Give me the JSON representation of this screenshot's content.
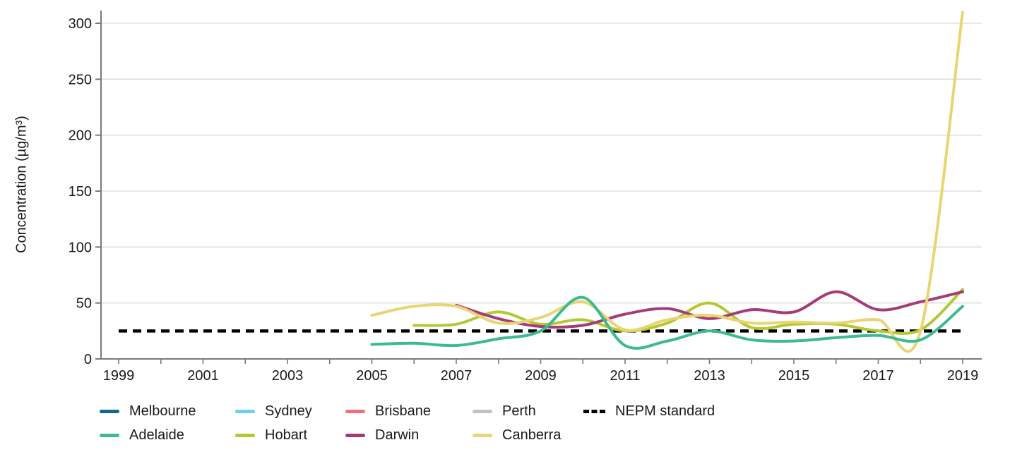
{
  "chart_data": {
    "type": "line",
    "ylabel": "Concentration (µg/m³)",
    "xlabel": "",
    "ylim": [
      0,
      300
    ],
    "y_ticks": [
      0,
      50,
      100,
      150,
      200,
      250,
      300
    ],
    "x_range": [
      1999,
      2019
    ],
    "x_tick_labels": [
      1999,
      2001,
      2003,
      2005,
      2007,
      2009,
      2011,
      2013,
      2015,
      2017,
      2019
    ],
    "x_minor_tick_step_years": 1,
    "grid": "horizontal",
    "legend_position": "bottom",
    "series": [
      {
        "name": "Melbourne",
        "color": "#12688c",
        "style": "solid",
        "x": [],
        "values": []
      },
      {
        "name": "Sydney",
        "color": "#6ed0f0",
        "style": "solid",
        "x": [],
        "values": []
      },
      {
        "name": "Brisbane",
        "color": "#f1707f",
        "style": "solid",
        "x": [],
        "values": []
      },
      {
        "name": "Perth",
        "color": "#c2c2c2",
        "style": "solid",
        "x": [],
        "values": []
      },
      {
        "name": "Adelaide",
        "color": "#3cba92",
        "style": "solid",
        "x": [
          2005,
          2006,
          2007,
          2008,
          2009,
          2010,
          2011,
          2012,
          2013,
          2014,
          2015,
          2016,
          2017,
          2018,
          2019
        ],
        "values": [
          13,
          14,
          12,
          18,
          25,
          55,
          12,
          16,
          25,
          17,
          16,
          19,
          21,
          17,
          47
        ]
      },
      {
        "name": "Hobart",
        "color": "#b5c833",
        "style": "solid",
        "x": [
          2006,
          2007,
          2008,
          2009,
          2010,
          2011,
          2012,
          2013,
          2014,
          2015,
          2016,
          2017,
          2018,
          2019
        ],
        "values": [
          30,
          31,
          42,
          31,
          35,
          25,
          32,
          50,
          28,
          31,
          31,
          25,
          26,
          62
        ]
      },
      {
        "name": "Darwin",
        "color": "#a63c76",
        "style": "solid",
        "x": [
          2007,
          2008,
          2009,
          2010,
          2011,
          2012,
          2013,
          2014,
          2015,
          2016,
          2017,
          2018,
          2019
        ],
        "values": [
          48,
          36,
          29,
          30,
          40,
          45,
          36,
          44,
          42,
          60,
          44,
          51,
          60
        ]
      },
      {
        "name": "Canberra",
        "color": "#e9d572",
        "style": "solid",
        "x": [
          2005,
          2006,
          2007,
          2008,
          2009,
          2010,
          2011,
          2012,
          2013,
          2014,
          2015,
          2016,
          2017,
          2018,
          2019
        ],
        "values": [
          39,
          47,
          47,
          32,
          37,
          51,
          26,
          35,
          39,
          32,
          33,
          32,
          35,
          25,
          310
        ]
      },
      {
        "name": "NEPM standard",
        "color": "#000000",
        "style": "dashed",
        "x": [
          1999,
          2019
        ],
        "values": [
          25,
          25
        ]
      }
    ]
  },
  "legend": {
    "rows": [
      [
        "Melbourne",
        "Sydney",
        "Brisbane",
        "Perth",
        "NEPM standard"
      ],
      [
        "Adelaide",
        "Hobart",
        "Darwin",
        "Canberra"
      ]
    ]
  },
  "colors": {
    "gridline": "#d9d9d9",
    "axis": "#7a7a7a",
    "text": "#1a1a1a"
  }
}
